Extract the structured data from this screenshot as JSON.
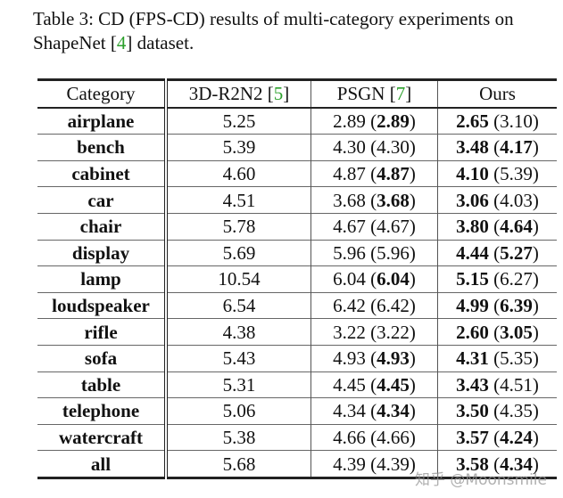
{
  "caption": {
    "prefix": "Table 3:  CD (FPS-CD) results of multi-category experiments on ShapeNet [",
    "cite": "4",
    "suffix": "] dataset."
  },
  "table": {
    "headers": [
      {
        "text": "Category",
        "cite": ""
      },
      {
        "text": "3D-R2N2 [",
        "cite": "5",
        "close": "]"
      },
      {
        "text": "PSGN [",
        "cite": "7",
        "close": "]"
      },
      {
        "text": "Ours",
        "cite": ""
      }
    ],
    "rows": [
      {
        "category": "airplane",
        "r2n2": "5.25",
        "psgn": {
          "cd": "2.89",
          "fps": "2.89",
          "fps_bold": true
        },
        "ours": {
          "cd": "2.65",
          "cd_bold": true,
          "fps": "3.10",
          "fps_bold": false
        }
      },
      {
        "category": "bench",
        "r2n2": "5.39",
        "psgn": {
          "cd": "4.30",
          "fps": "4.30",
          "fps_bold": false
        },
        "ours": {
          "cd": "3.48",
          "cd_bold": true,
          "fps": "4.17",
          "fps_bold": true
        }
      },
      {
        "category": "cabinet",
        "r2n2": "4.60",
        "psgn": {
          "cd": "4.87",
          "fps": "4.87",
          "fps_bold": true
        },
        "ours": {
          "cd": "4.10",
          "cd_bold": true,
          "fps": "5.39",
          "fps_bold": false
        }
      },
      {
        "category": "car",
        "r2n2": "4.51",
        "psgn": {
          "cd": "3.68",
          "fps": "3.68",
          "fps_bold": true
        },
        "ours": {
          "cd": "3.06",
          "cd_bold": true,
          "fps": "4.03",
          "fps_bold": false
        }
      },
      {
        "category": "chair",
        "r2n2": "5.78",
        "psgn": {
          "cd": "4.67",
          "fps": "4.67",
          "fps_bold": false
        },
        "ours": {
          "cd": "3.80",
          "cd_bold": true,
          "fps": "4.64",
          "fps_bold": true
        }
      },
      {
        "category": "display",
        "r2n2": "5.69",
        "psgn": {
          "cd": "5.96",
          "fps": "5.96",
          "fps_bold": false
        },
        "ours": {
          "cd": "4.44",
          "cd_bold": true,
          "fps": "5.27",
          "fps_bold": true
        }
      },
      {
        "category": "lamp",
        "r2n2": "10.54",
        "psgn": {
          "cd": "6.04",
          "fps": "6.04",
          "fps_bold": true
        },
        "ours": {
          "cd": "5.15",
          "cd_bold": true,
          "fps": "6.27",
          "fps_bold": false
        }
      },
      {
        "category": "loudspeaker",
        "r2n2": "6.54",
        "psgn": {
          "cd": "6.42",
          "fps": "6.42",
          "fps_bold": false
        },
        "ours": {
          "cd": "4.99",
          "cd_bold": true,
          "fps": "6.39",
          "fps_bold": true
        }
      },
      {
        "category": "rifle",
        "r2n2": "4.38",
        "psgn": {
          "cd": "3.22",
          "fps": "3.22",
          "fps_bold": false
        },
        "ours": {
          "cd": "2.60",
          "cd_bold": true,
          "fps": "3.05",
          "fps_bold": true
        }
      },
      {
        "category": "sofa",
        "r2n2": "5.43",
        "psgn": {
          "cd": "4.93",
          "fps": "4.93",
          "fps_bold": true
        },
        "ours": {
          "cd": "4.31",
          "cd_bold": true,
          "fps": "5.35",
          "fps_bold": false
        }
      },
      {
        "category": "table",
        "r2n2": "5.31",
        "psgn": {
          "cd": "4.45",
          "fps": "4.45",
          "fps_bold": true
        },
        "ours": {
          "cd": "3.43",
          "cd_bold": true,
          "fps": "4.51",
          "fps_bold": false
        }
      },
      {
        "category": "telephone",
        "r2n2": "5.06",
        "psgn": {
          "cd": "4.34",
          "fps": "4.34",
          "fps_bold": true
        },
        "ours": {
          "cd": "3.50",
          "cd_bold": true,
          "fps": "4.35",
          "fps_bold": false
        }
      },
      {
        "category": "watercraft",
        "r2n2": "5.38",
        "psgn": {
          "cd": "4.66",
          "fps": "4.66",
          "fps_bold": false
        },
        "ours": {
          "cd": "3.57",
          "cd_bold": true,
          "fps": "4.24",
          "fps_bold": true
        }
      },
      {
        "category": "all",
        "r2n2": "5.68",
        "psgn": {
          "cd": "4.39",
          "fps": "4.39",
          "fps_bold": false
        },
        "ours": {
          "cd": "3.58",
          "cd_bold": true,
          "fps": "4.34",
          "fps_bold": true
        }
      }
    ]
  },
  "watermark": "知乎 @Moonsmile",
  "colors": {
    "citation": "#2ca02c",
    "text": "#111111"
  }
}
